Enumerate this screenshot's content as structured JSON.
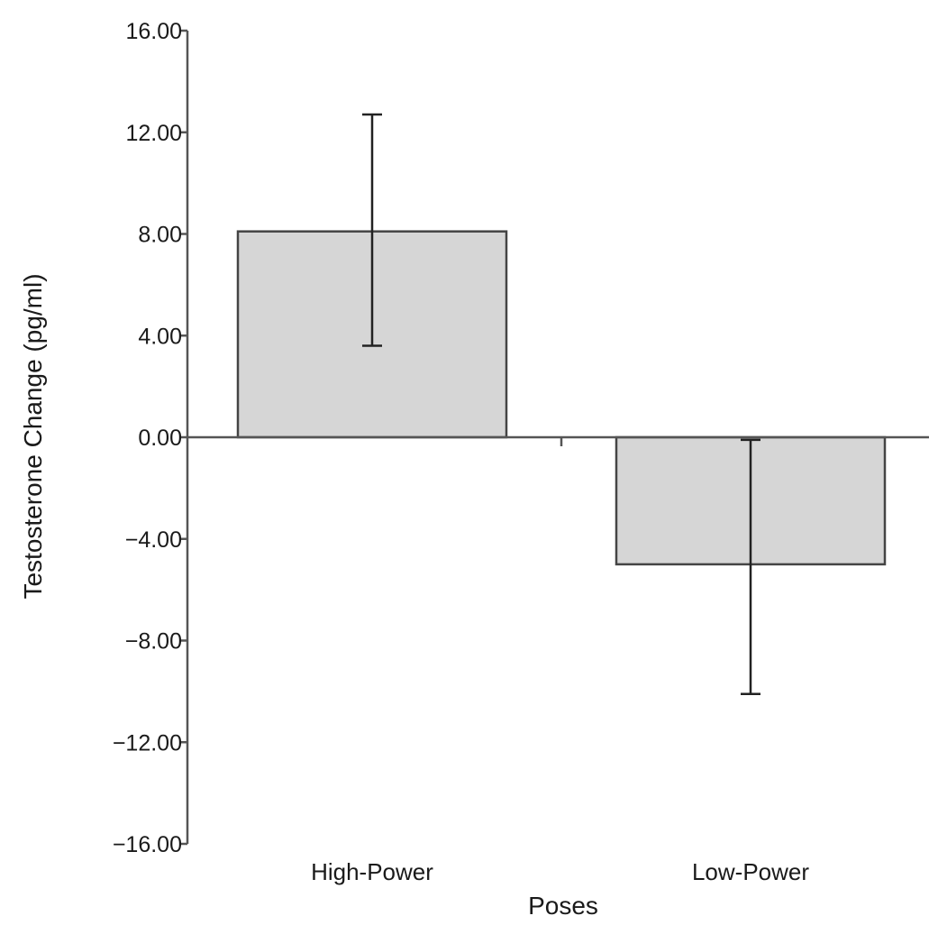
{
  "chart_data": {
    "type": "bar",
    "categories": [
      "High-Power",
      "Low-Power"
    ],
    "series": [
      {
        "values": [
          8.1,
          -5.0
        ],
        "error_low": [
          3.6,
          -10.1
        ],
        "error_high": [
          12.7,
          -0.1
        ]
      }
    ],
    "xlabel": "Poses",
    "ylabel": "Testosterone Change (pg/ml)",
    "ylim": [
      -16,
      16
    ],
    "yticks": [
      16,
      12,
      8,
      4,
      0,
      -4,
      -8,
      -12,
      -16
    ],
    "ytick_labels": [
      "16.00",
      "12.00",
      "8.00",
      "4.00",
      "0.00",
      "−4.00",
      "−8.00",
      "−12.00",
      "−16.00"
    ],
    "grid": false,
    "legend": "none",
    "colors": {
      "bar_fill": "#d6d6d6",
      "bar_stroke": "#444444",
      "axis": "#555555"
    }
  }
}
